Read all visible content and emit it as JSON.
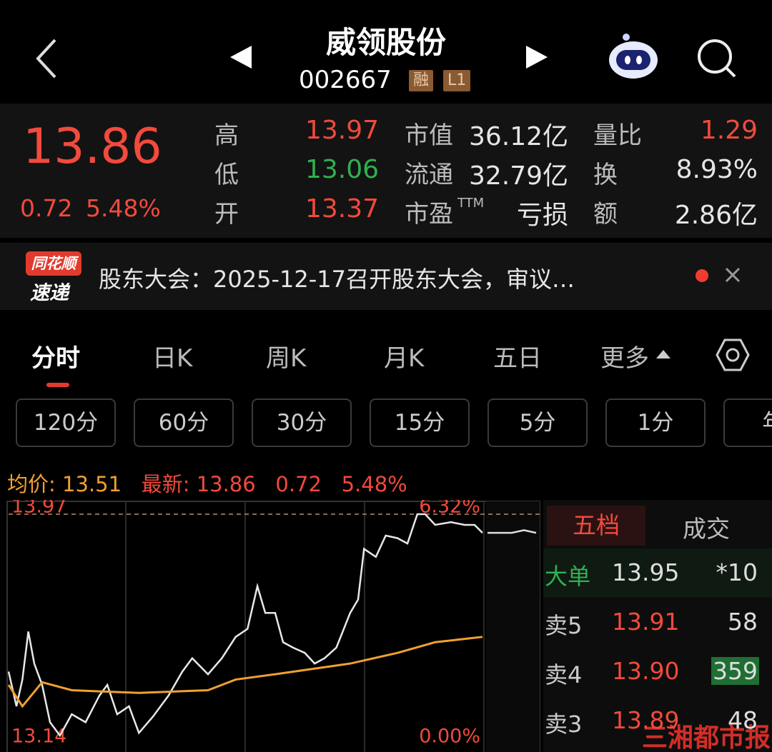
{
  "header": {
    "title": "威领股份",
    "code": "002667",
    "badges": [
      "融",
      "L1"
    ]
  },
  "quote": {
    "price": "13.86",
    "change": "0.72",
    "change_pct": "5.48%",
    "stats": [
      [
        {
          "label": "高",
          "value": "13.97"
        },
        {
          "label": "低",
          "value": "13.06"
        },
        {
          "label": "开",
          "value": "13.37"
        }
      ],
      [
        {
          "label": "市值",
          "value": "36.12亿"
        },
        {
          "label": "流通",
          "value": "32.79亿"
        },
        {
          "label": "市盈",
          "sup": "TTM",
          "value": "亏损"
        }
      ],
      [
        {
          "label": "量比",
          "value": "1.29"
        },
        {
          "label": "换",
          "value": "8.93%"
        },
        {
          "label": "额",
          "value": "2.86亿"
        }
      ]
    ]
  },
  "news": {
    "brand": [
      "同花顺",
      "速递"
    ],
    "text": "股东大会：2025-12-17召开股东大会，审议…"
  },
  "tabs": [
    "分时",
    "日K",
    "周K",
    "月K",
    "五日",
    "更多"
  ],
  "periods": [
    "120分",
    "60分",
    "30分",
    "15分",
    "5分",
    "1分",
    "年"
  ],
  "legend": {
    "avg_label": "均价:",
    "avg": "13.51",
    "last_label": "最新:",
    "last": "13.86",
    "change": "0.72",
    "change_pct": "5.48%"
  },
  "chart_data": {
    "type": "line",
    "x": [
      0,
      4,
      7,
      10,
      13,
      17,
      21,
      26,
      32,
      39,
      46,
      50,
      55,
      61,
      66,
      73,
      81,
      88,
      93,
      101,
      108,
      115,
      121,
      126,
      130,
      135,
      139,
      144,
      150,
      155,
      160,
      166,
      173,
      177,
      180,
      186,
      191,
      197,
      202,
      207,
      211,
      216,
      224,
      231,
      236,
      240
    ],
    "series": [
      {
        "color": "#e8e8e8",
        "values": [
          13.38,
          13.25,
          13.35,
          13.53,
          13.41,
          13.33,
          13.19,
          13.14,
          13.22,
          13.19,
          13.29,
          13.33,
          13.22,
          13.25,
          13.15,
          13.21,
          13.29,
          13.38,
          13.43,
          13.37,
          13.43,
          13.51,
          13.54,
          13.7,
          13.6,
          13.6,
          13.49,
          13.47,
          13.45,
          13.41,
          13.43,
          13.47,
          13.6,
          13.65,
          13.84,
          13.81,
          13.89,
          13.88,
          13.86,
          13.97,
          13.97,
          13.93,
          13.94,
          13.93,
          13.93,
          13.9
        ]
      },
      {
        "color": "#f0a030",
        "values": [
          13.33,
          null,
          13.25,
          null,
          null,
          13.34,
          null,
          null,
          13.31,
          null,
          null,
          null,
          null,
          null,
          13.3,
          null,
          null,
          null,
          null,
          13.31,
          null,
          13.35,
          null,
          null,
          null,
          13.37,
          null,
          null,
          null,
          null,
          null,
          null,
          13.41,
          null,
          null,
          null,
          null,
          13.45,
          null,
          null,
          null,
          13.49,
          null,
          null,
          null,
          13.51
        ]
      }
    ],
    "after_hours": [
      13.9,
      13.9,
      13.9,
      13.91,
      13.9
    ],
    "xlim": [
      0,
      240
    ],
    "ylim": [
      13.14,
      13.97
    ],
    "yticks": [
      13.97,
      13.14
    ],
    "y2lim": [
      0,
      6.32
    ],
    "y2ticks": [
      {
        "value": 6.32,
        "label": "6.32%"
      },
      {
        "value": 0,
        "label": "0.00%"
      }
    ]
  },
  "orderbook": {
    "tabs": [
      "五档",
      "成交"
    ],
    "rows": [
      {
        "label": "大单",
        "price": "13.95",
        "volume": "*10"
      },
      {
        "label": "卖5",
        "price": "13.91",
        "volume": "58"
      },
      {
        "label": "卖4",
        "price": "13.90",
        "volume": "359"
      },
      {
        "label": "卖3",
        "price": "13.89",
        "volume": "48"
      }
    ]
  },
  "watermark": "三湘都市报"
}
